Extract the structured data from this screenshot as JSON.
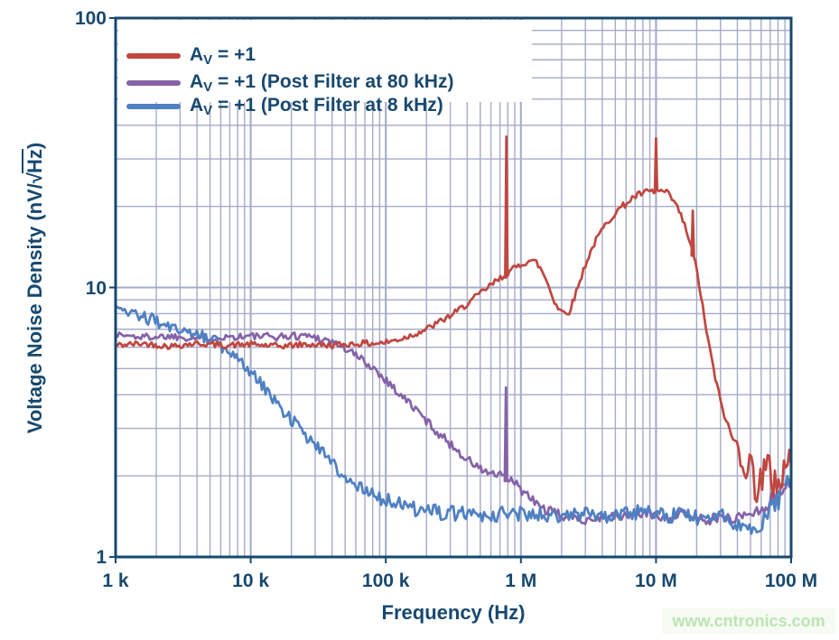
{
  "figure": {
    "watermark": "www.cntronics.com"
  },
  "colors": {
    "text": "#17486F",
    "frame": "#17486F",
    "grid": "#A6ABC6",
    "background": "#FFFFFF",
    "watermark_text": "#BDE3B4",
    "watermark_bg": "#F6FBF3"
  },
  "legend": {
    "items": [
      {
        "prefix": "A",
        "sub": "V",
        "rest": " = +1",
        "color": "#C04640"
      },
      {
        "prefix": "A",
        "sub": "V",
        "rest": " = +1 (Post Filter at 80 kHz)",
        "color": "#8562A8"
      },
      {
        "prefix": "A",
        "sub": "V",
        "rest": " = +1 (Post Filter at 8 kHz)",
        "color": "#4E80C2"
      }
    ]
  },
  "axes": {
    "x": {
      "title": "Frequency (Hz)",
      "tick_labels": [
        "1 k",
        "10 k",
        "100 k",
        "1 M",
        "10 M",
        "100 M"
      ]
    },
    "y": {
      "title_prefix": "Voltage Noise Density (nV/",
      "radical": "√",
      "under_radical": "Hz",
      "title_suffix": ")",
      "tick_labels": [
        "100",
        "10",
        "1"
      ]
    }
  },
  "chart_data": {
    "type": "line",
    "title": "",
    "xlabel": "Frequency (Hz)",
    "ylabel": "Voltage Noise Density (nV/sqrt(Hz))",
    "x_scale": "log",
    "y_scale": "log",
    "xlim": [
      1000,
      100000000
    ],
    "ylim": [
      1,
      100
    ],
    "x_tick_values": [
      1000,
      10000,
      100000,
      1000000,
      10000000,
      100000000
    ],
    "y_tick_values": [
      1,
      10,
      100
    ],
    "grid": true,
    "legend_position": "top-left",
    "draw_order": [
      1,
      2,
      0
    ],
    "series": [
      {
        "name": "AV = +1",
        "color": "#C04640",
        "seed": 42,
        "noise": [
          [
            1000,
            0.011
          ],
          [
            35000000,
            0.013
          ],
          [
            50000000,
            0.09
          ],
          [
            100000000,
            0.1
          ]
        ],
        "spikes": [
          [
            780000,
            36.3
          ],
          [
            10000000,
            35.8
          ],
          [
            18700000,
            19.3
          ]
        ],
        "points": [
          [
            1000,
            6.1
          ],
          [
            1600,
            6.2
          ],
          [
            2500,
            6.05
          ],
          [
            4000,
            6.2
          ],
          [
            6300,
            6.1
          ],
          [
            10000,
            6.15
          ],
          [
            16000,
            6.05
          ],
          [
            25000,
            6.15
          ],
          [
            40000,
            6.1
          ],
          [
            63000,
            6.2
          ],
          [
            80000,
            6.2
          ],
          [
            100000,
            6.25
          ],
          [
            130000,
            6.45
          ],
          [
            160000,
            6.7
          ],
          [
            200000,
            7.0
          ],
          [
            250000,
            7.45
          ],
          [
            320000,
            8.0
          ],
          [
            400000,
            8.7
          ],
          [
            500000,
            9.5
          ],
          [
            600000,
            10.2
          ],
          [
            700000,
            10.8
          ],
          [
            800000,
            11.3
          ],
          [
            900000,
            11.8
          ],
          [
            1000000,
            12.2
          ],
          [
            1150000,
            12.6
          ],
          [
            1300000,
            12.4
          ],
          [
            1450000,
            11.4
          ],
          [
            1600000,
            10.2
          ],
          [
            1750000,
            9.0
          ],
          [
            1900000,
            8.35
          ],
          [
            2100000,
            8.05
          ],
          [
            2300000,
            8.2
          ],
          [
            2600000,
            9.8
          ],
          [
            3000000,
            12.2
          ],
          [
            3500000,
            14.6
          ],
          [
            4000000,
            16.4
          ],
          [
            4500000,
            17.8
          ],
          [
            5000000,
            19.0
          ],
          [
            5500000,
            19.8
          ],
          [
            6000000,
            20.5
          ],
          [
            6500000,
            21.2
          ],
          [
            7000000,
            21.8
          ],
          [
            7500000,
            22.1
          ],
          [
            8000000,
            22.4
          ],
          [
            9000000,
            22.7
          ],
          [
            10000000,
            22.6
          ],
          [
            11000000,
            22.8
          ],
          [
            12000000,
            22.4
          ],
          [
            13000000,
            21.5
          ],
          [
            14000000,
            20.3
          ],
          [
            15000000,
            18.9
          ],
          [
            16000000,
            17.4
          ],
          [
            17000000,
            15.9
          ],
          [
            18000000,
            14.4
          ],
          [
            19000000,
            13.0
          ],
          [
            20000000,
            11.6
          ],
          [
            21000000,
            10.1
          ],
          [
            22000000,
            8.6
          ],
          [
            24000000,
            6.6
          ],
          [
            26000000,
            5.3
          ],
          [
            28000000,
            4.4
          ],
          [
            30000000,
            3.8
          ],
          [
            33000000,
            3.2
          ],
          [
            36000000,
            2.85
          ],
          [
            40000000,
            2.55
          ],
          [
            44000000,
            2.35
          ],
          [
            48000000,
            2.15
          ],
          [
            54000000,
            1.95
          ],
          [
            60000000,
            1.95
          ],
          [
            66000000,
            2.0
          ],
          [
            72000000,
            2.0
          ],
          [
            80000000,
            1.95
          ],
          [
            88000000,
            2.05
          ],
          [
            94000000,
            2.2
          ],
          [
            100000000,
            2.6
          ]
        ]
      },
      {
        "name": "AV = +1 (Post Filter at 80 kHz)",
        "color": "#8562A8",
        "seed": 1337,
        "noise": [
          [
            1000,
            0.013
          ],
          [
            1500000,
            0.018
          ],
          [
            60000000,
            0.02
          ],
          [
            100000000,
            0.045
          ]
        ],
        "spikes": [
          [
            775000,
            4.25
          ]
        ],
        "points": [
          [
            1000,
            6.7
          ],
          [
            1500,
            6.55
          ],
          [
            2500,
            6.6
          ],
          [
            4000,
            6.5
          ],
          [
            6000,
            6.55
          ],
          [
            10000,
            6.6
          ],
          [
            15000,
            6.55
          ],
          [
            20000,
            6.6
          ],
          [
            25000,
            6.65
          ],
          [
            30000,
            6.55
          ],
          [
            40000,
            6.3
          ],
          [
            50000,
            5.95
          ],
          [
            63000,
            5.5
          ],
          [
            80000,
            5.05
          ],
          [
            100000,
            4.55
          ],
          [
            125000,
            4.05
          ],
          [
            160000,
            3.6
          ],
          [
            200000,
            3.2
          ],
          [
            250000,
            2.85
          ],
          [
            320000,
            2.55
          ],
          [
            400000,
            2.3
          ],
          [
            500000,
            2.12
          ],
          [
            630000,
            2.02
          ],
          [
            775000,
            1.97
          ],
          [
            900000,
            1.88
          ],
          [
            1000000,
            1.78
          ],
          [
            1200000,
            1.63
          ],
          [
            1500000,
            1.5
          ],
          [
            1800000,
            1.45
          ],
          [
            2200000,
            1.4
          ],
          [
            3000000,
            1.38
          ],
          [
            4000000,
            1.4
          ],
          [
            6000000,
            1.42
          ],
          [
            8000000,
            1.45
          ],
          [
            10000000,
            1.43
          ],
          [
            13000000,
            1.4
          ],
          [
            16000000,
            1.44
          ],
          [
            20000000,
            1.4
          ],
          [
            25000000,
            1.38
          ],
          [
            30000000,
            1.4
          ],
          [
            36000000,
            1.38
          ],
          [
            42000000,
            1.42
          ],
          [
            50000000,
            1.45
          ],
          [
            60000000,
            1.5
          ],
          [
            70000000,
            1.6
          ],
          [
            80000000,
            1.75
          ],
          [
            90000000,
            1.85
          ],
          [
            100000000,
            1.95
          ]
        ]
      },
      {
        "name": "AV = +1 (Post Filter at 8 kHz)",
        "color": "#4E80C2",
        "seed": 2024,
        "noise": [
          [
            1000,
            0.022
          ],
          [
            200000,
            0.028
          ],
          [
            40000000,
            0.028
          ],
          [
            70000000,
            0.04
          ],
          [
            100000000,
            0.05
          ]
        ],
        "spikes": [],
        "points": [
          [
            1000,
            8.3
          ],
          [
            1300,
            8.1
          ],
          [
            1700,
            7.7
          ],
          [
            2000,
            7.5
          ],
          [
            2500,
            7.2
          ],
          [
            3000,
            7.0
          ],
          [
            3600,
            6.8
          ],
          [
            4300,
            6.6
          ],
          [
            5000,
            6.4
          ],
          [
            5800,
            6.2
          ],
          [
            6600,
            5.9
          ],
          [
            7600,
            5.6
          ],
          [
            8800,
            5.2
          ],
          [
            10000,
            4.85
          ],
          [
            12000,
            4.35
          ],
          [
            14000,
            4.0
          ],
          [
            17000,
            3.55
          ],
          [
            20000,
            3.25
          ],
          [
            24000,
            2.95
          ],
          [
            29000,
            2.65
          ],
          [
            35000,
            2.45
          ],
          [
            42000,
            2.2
          ],
          [
            50000,
            2.0
          ],
          [
            60000,
            1.87
          ],
          [
            72000,
            1.76
          ],
          [
            86000,
            1.68
          ],
          [
            100000,
            1.62
          ],
          [
            120000,
            1.58
          ],
          [
            150000,
            1.52
          ],
          [
            200000,
            1.48
          ],
          [
            300000,
            1.45
          ],
          [
            450000,
            1.44
          ],
          [
            700000,
            1.44
          ],
          [
            1000000,
            1.45
          ],
          [
            1500000,
            1.42
          ],
          [
            2000000,
            1.4
          ],
          [
            3000000,
            1.44
          ],
          [
            4500000,
            1.42
          ],
          [
            6000000,
            1.45
          ],
          [
            8000000,
            1.48
          ],
          [
            10000000,
            1.46
          ],
          [
            13000000,
            1.42
          ],
          [
            16000000,
            1.45
          ],
          [
            20000000,
            1.4
          ],
          [
            25000000,
            1.44
          ],
          [
            30000000,
            1.42
          ],
          [
            36000000,
            1.36
          ],
          [
            42000000,
            1.32
          ],
          [
            48000000,
            1.28
          ],
          [
            54000000,
            1.22
          ],
          [
            60000000,
            1.3
          ],
          [
            68000000,
            1.45
          ],
          [
            76000000,
            1.55
          ],
          [
            84000000,
            1.65
          ],
          [
            92000000,
            1.8
          ],
          [
            100000000,
            1.75
          ]
        ]
      }
    ]
  }
}
